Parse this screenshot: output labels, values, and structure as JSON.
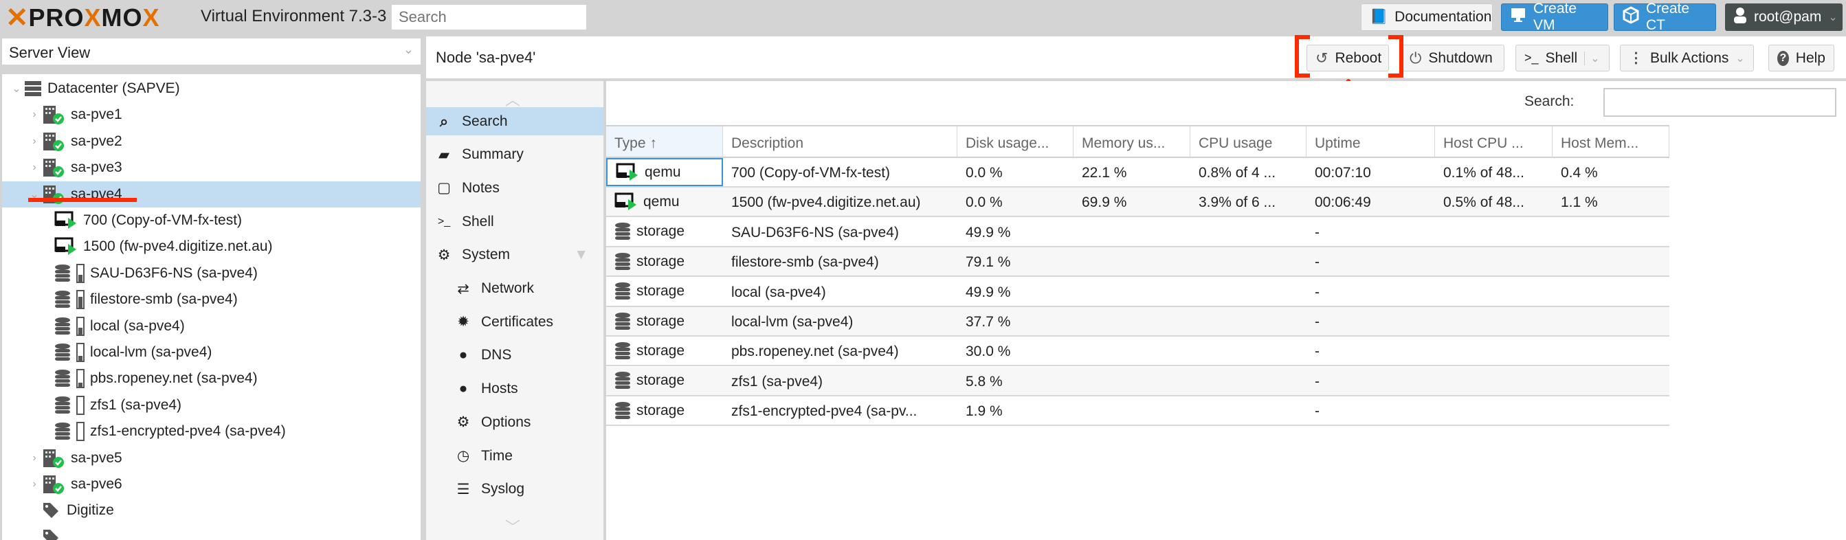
{
  "app": {
    "logo_text": "PROXMOX",
    "subtitle": "Virtual Environment 7.3-3",
    "search_placeholder": "Search"
  },
  "topbar": {
    "documentation": "Documentation",
    "create_vm": "Create VM",
    "create_ct": "Create CT",
    "user": "root@pam"
  },
  "server_view": {
    "value": "Server View"
  },
  "tree": [
    {
      "label": "Datacenter (SAPVE)",
      "icon": "datacenter-icon",
      "level": 0,
      "expander": "v"
    },
    {
      "label": "sa-pve1",
      "icon": "node-online-icon",
      "level": 1,
      "expander": ">"
    },
    {
      "label": "sa-pve2",
      "icon": "node-online-icon",
      "level": 1,
      "expander": ">"
    },
    {
      "label": "sa-pve3",
      "icon": "node-online-icon",
      "level": 1,
      "expander": ">"
    },
    {
      "label": "sa-pve4",
      "icon": "node-online-icon",
      "level": 1,
      "expander": "v",
      "selected": true
    },
    {
      "label": "700 (Copy-of-VM-fx-test)",
      "icon": "vm-running-icon",
      "level": 2
    },
    {
      "label": "1500 (fw-pve4.digitize.net.au)",
      "icon": "vm-running-icon",
      "level": 2
    },
    {
      "label": "SAU-D63F6-NS (sa-pve4)",
      "icon": "storage-icon",
      "level": 2,
      "usage": 49.9
    },
    {
      "label": "filestore-smb (sa-pve4)",
      "icon": "storage-icon",
      "level": 2,
      "usage": 79.1
    },
    {
      "label": "local (sa-pve4)",
      "icon": "storage-icon",
      "level": 2,
      "usage": 49.9
    },
    {
      "label": "local-lvm (sa-pve4)",
      "icon": "storage-icon",
      "level": 2,
      "usage": 37.7
    },
    {
      "label": "pbs.ropeney.net (sa-pve4)",
      "icon": "storage-icon",
      "level": 2,
      "usage": 30.0
    },
    {
      "label": "zfs1 (sa-pve4)",
      "icon": "storage-icon",
      "level": 2,
      "usage": 5.8
    },
    {
      "label": "zfs1-encrypted-pve4 (sa-pve4)",
      "icon": "storage-icon",
      "level": 2,
      "usage": 1.9
    },
    {
      "label": "sa-pve5",
      "icon": "node-online-icon",
      "level": 1,
      "expander": ">"
    },
    {
      "label": "sa-pve6",
      "icon": "node-online-icon",
      "level": 1,
      "expander": ">"
    },
    {
      "label": "Digitize",
      "icon": "tags-icon",
      "level": 1
    },
    {
      "label": "",
      "icon": "tags-icon",
      "level": 1
    }
  ],
  "node": {
    "title": "Node 'sa-pve4'",
    "reboot": "Reboot",
    "shutdown": "Shutdown",
    "shell": "Shell",
    "bulk_actions": "Bulk Actions",
    "help": "Help"
  },
  "nav": [
    {
      "label": "Search",
      "icon": "search-icon",
      "selected": true
    },
    {
      "label": "Summary",
      "icon": "book-icon"
    },
    {
      "label": "Notes",
      "icon": "notes-icon"
    },
    {
      "label": "Shell",
      "icon": "terminal-icon"
    },
    {
      "label": "System",
      "icon": "gears-icon",
      "expandable": true
    },
    {
      "label": "Network",
      "icon": "exchange-icon",
      "sub": true
    },
    {
      "label": "Certificates",
      "icon": "certificate-icon",
      "sub": true
    },
    {
      "label": "DNS",
      "icon": "globe-icon",
      "sub": true
    },
    {
      "label": "Hosts",
      "icon": "globe-icon",
      "sub": true
    },
    {
      "label": "Options",
      "icon": "gear-icon",
      "sub": true
    },
    {
      "label": "Time",
      "icon": "clock-icon",
      "sub": true
    },
    {
      "label": "Syslog",
      "icon": "list-icon",
      "sub": true
    }
  ],
  "search": {
    "label": "Search:",
    "value": ""
  },
  "grid": {
    "columns": [
      "Type ↑",
      "Description",
      "Disk usage...",
      "Memory us...",
      "CPU usage",
      "Uptime",
      "Host CPU ...",
      "Host Mem..."
    ],
    "rows": [
      [
        "qemu",
        "700 (Copy-of-VM-fx-test)",
        "0.0 %",
        "22.1 %",
        "0.8% of 4 ...",
        "00:07:10",
        "0.1% of 48...",
        "0.4 %"
      ],
      [
        "qemu",
        "1500 (fw-pve4.digitize.net.au)",
        "0.0 %",
        "69.9 %",
        "3.9% of 6 ...",
        "00:06:49",
        "0.5% of 48...",
        "1.1 %"
      ],
      [
        "storage",
        "SAU-D63F6-NS (sa-pve4)",
        "49.9 %",
        "",
        "",
        "-",
        "",
        ""
      ],
      [
        "storage",
        "filestore-smb (sa-pve4)",
        "79.1 %",
        "",
        "",
        "-",
        "",
        ""
      ],
      [
        "storage",
        "local (sa-pve4)",
        "49.9 %",
        "",
        "",
        "-",
        "",
        ""
      ],
      [
        "storage",
        "local-lvm (sa-pve4)",
        "37.7 %",
        "",
        "",
        "-",
        "",
        ""
      ],
      [
        "storage",
        "pbs.ropeney.net (sa-pve4)",
        "30.0 %",
        "",
        "",
        "-",
        "",
        ""
      ],
      [
        "storage",
        "zfs1 (sa-pve4)",
        "5.8 %",
        "",
        "",
        "-",
        "",
        ""
      ],
      [
        "storage",
        "zfs1-encrypted-pve4 (sa-pv...",
        "1.9 %",
        "",
        "",
        "-",
        "",
        ""
      ]
    ]
  },
  "colors": {
    "accent": "#3892d4",
    "selection": "#c2ddf2",
    "brand_orange": "#e57000",
    "annotation_red": "#ff2a00",
    "status_green": "#21bf4b"
  }
}
